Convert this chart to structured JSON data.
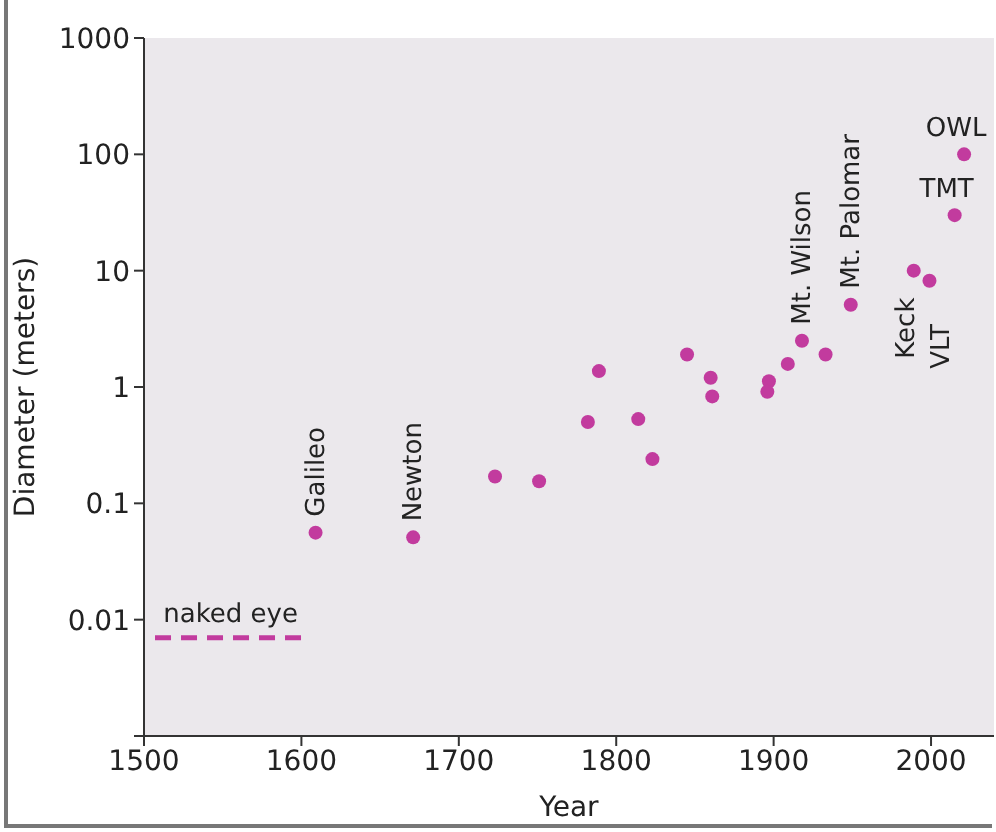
{
  "chart_data": {
    "type": "scatter",
    "xlabel": "Year",
    "ylabel": "Diameter (meters)",
    "log": "y",
    "xlim": [
      1500,
      2040
    ],
    "xticks": [
      1500,
      1600,
      1700,
      1800,
      1900,
      2000
    ],
    "ylim": [
      0.001,
      1000
    ],
    "yticks": [
      {
        "value": 0.001,
        "label": null
      },
      0.01,
      0.1,
      1,
      10,
      100,
      1000
    ],
    "series": [
      {
        "marker": "circle",
        "color": "#c23b9e",
        "x": [
          1609,
          1671,
          1723,
          1751,
          1782,
          1789,
          1814,
          1823,
          1845,
          1860,
          1861,
          1897,
          1896,
          1909,
          1918,
          1933,
          1949,
          1989,
          1999,
          2015,
          2021
        ],
        "values": [
          0.056,
          0.051,
          0.17,
          0.155,
          0.5,
          1.37,
          0.53,
          0.24,
          1.9,
          1.2,
          0.83,
          1.12,
          0.91,
          1.58,
          2.5,
          1.9,
          5.1,
          10,
          8.2,
          30,
          100
        ]
      },
      {
        "type": "line",
        "name": "naked eye",
        "color": "#c23b9e",
        "line_style": "dashed",
        "x": [
          1507,
          1603
        ],
        "values": [
          0.007,
          0.007
        ]
      }
    ],
    "annotations": [
      {
        "text": "Galileo",
        "x": 1609,
        "y": 0.056
      },
      {
        "text": "Newton",
        "x": 1671,
        "y": 0.051
      },
      {
        "text": "Mt. Wilson",
        "x": 1918,
        "y": 2.5
      },
      {
        "text": "Mt. Palomar",
        "x": 1949,
        "y": 5.1
      },
      {
        "text": "Keck",
        "x": 1989,
        "y": 10
      },
      {
        "text": "VLT",
        "x": 1999,
        "y": 8.2
      },
      {
        "text": "TMT",
        "x": 2015,
        "y": 30
      },
      {
        "text": "OWL",
        "x": 2021,
        "y": 100
      }
    ]
  }
}
